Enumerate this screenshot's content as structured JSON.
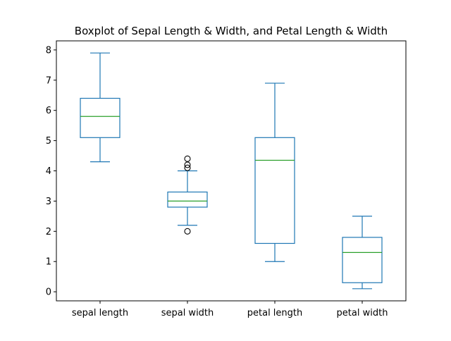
{
  "chart_data": {
    "type": "boxplot",
    "title": "Boxplot of Sepal Length & Width, and Petal Length & Width",
    "xlabel": "",
    "ylabel": "",
    "ylim": [
      -0.3,
      8.3
    ],
    "yticks": [
      0,
      1,
      2,
      3,
      4,
      5,
      6,
      7,
      8
    ],
    "categories": [
      "sepal length",
      "sepal width",
      "petal length",
      "petal width"
    ],
    "boxes": [
      {
        "name": "sepal length",
        "whisker_low": 4.3,
        "q1": 5.1,
        "median": 5.8,
        "q3": 6.4,
        "whisker_high": 7.9,
        "outliers": []
      },
      {
        "name": "sepal width",
        "whisker_low": 2.2,
        "q1": 2.8,
        "median": 3.0,
        "q3": 3.3,
        "whisker_high": 4.0,
        "outliers": [
          4.4,
          4.1,
          4.2,
          2.0
        ]
      },
      {
        "name": "petal length",
        "whisker_low": 1.0,
        "q1": 1.6,
        "median": 4.35,
        "q3": 5.1,
        "whisker_high": 6.9,
        "outliers": []
      },
      {
        "name": "petal width",
        "whisker_low": 0.1,
        "q1": 0.3,
        "median": 1.3,
        "q3": 1.8,
        "whisker_high": 2.5,
        "outliers": []
      }
    ],
    "grid": false,
    "colors": {
      "box": "#1f77b4",
      "median": "#2ca02c",
      "outlier": "#000000",
      "axes": "#000000"
    }
  }
}
